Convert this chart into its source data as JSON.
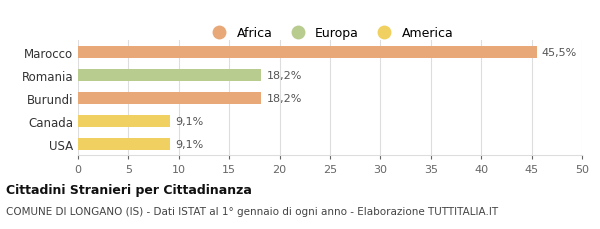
{
  "categories": [
    "USA",
    "Canada",
    "Burundi",
    "Romania",
    "Marocco"
  ],
  "values": [
    9.1,
    9.1,
    18.2,
    18.2,
    45.5
  ],
  "labels": [
    "9,1%",
    "9,1%",
    "18,2%",
    "18,2%",
    "45,5%"
  ],
  "bar_colors": [
    "#f0d060",
    "#f0d060",
    "#e8a878",
    "#b8cc90",
    "#e8a878"
  ],
  "legend_items": [
    {
      "label": "Africa",
      "color": "#e8a878"
    },
    {
      "label": "Europa",
      "color": "#b8cc90"
    },
    {
      "label": "America",
      "color": "#f0d060"
    }
  ],
  "xlim": [
    0,
    50
  ],
  "xticks": [
    0,
    5,
    10,
    15,
    20,
    25,
    30,
    35,
    40,
    45,
    50
  ],
  "title_bold": "Cittadini Stranieri per Cittadinanza",
  "subtitle": "COMUNE DI LONGANO (IS) - Dati ISTAT al 1° gennaio di ogni anno - Elaborazione TUTTITALIA.IT",
  "background_color": "#ffffff",
  "grid_color": "#dddddd"
}
